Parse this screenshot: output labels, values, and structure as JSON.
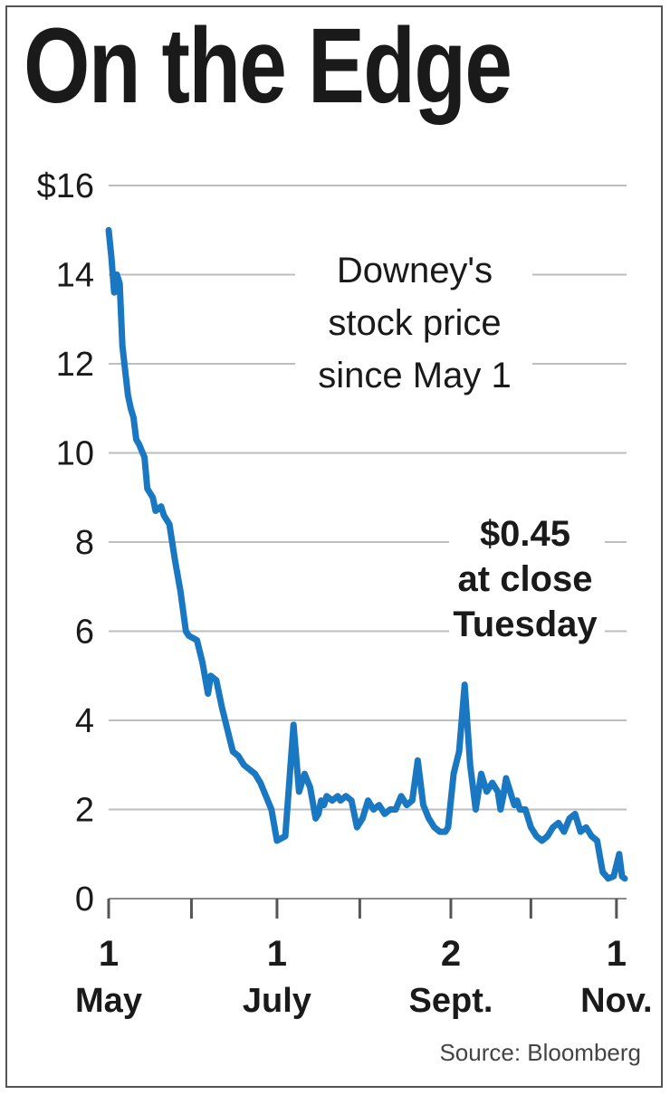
{
  "chart_data": {
    "type": "line",
    "title": "On the Edge",
    "annotation": [
      "Downey's",
      "stock price",
      "since May 1"
    ],
    "callout": [
      "$0.45",
      "at close",
      "Tuesday"
    ],
    "source": "Source: Bloomberg",
    "ylim": [
      0,
      16
    ],
    "y_ticks": [
      {
        "value": 16,
        "label": "$16"
      },
      {
        "value": 14,
        "label": "14"
      },
      {
        "value": 12,
        "label": "12"
      },
      {
        "value": 10,
        "label": "10"
      },
      {
        "value": 8,
        "label": "8"
      },
      {
        "value": 6,
        "label": "6"
      },
      {
        "value": 4,
        "label": "4"
      },
      {
        "value": 2,
        "label": "2"
      },
      {
        "value": 0,
        "label": "0"
      }
    ],
    "xlim": [
      "2008-05-01",
      "2008-11-04"
    ],
    "x_labels": [
      {
        "date": "2008-05-01",
        "day": "1",
        "month": "May"
      },
      {
        "date": "2008-07-01",
        "day": "1",
        "month": "July"
      },
      {
        "date": "2008-09-02",
        "day": "2",
        "month": "Sept."
      },
      {
        "date": "2008-11-01",
        "day": "1",
        "month": "Nov."
      }
    ],
    "x_ticks": [
      "2008-05-01",
      "2008-05-31",
      "2008-07-01",
      "2008-07-31",
      "2008-09-02",
      "2008-10-01",
      "2008-11-01"
    ],
    "grid": true,
    "line_color": "#1a78c2",
    "series": [
      {
        "x": [
          "2008-05-01",
          "2008-05-02",
          "2008-05-03",
          "2008-05-04",
          "2008-05-05",
          "2008-05-06",
          "2008-05-08",
          "2008-05-09",
          "2008-05-10",
          "2008-05-11",
          "2008-05-12",
          "2008-05-14",
          "2008-05-15",
          "2008-05-17",
          "2008-05-18",
          "2008-05-20",
          "2008-05-21",
          "2008-05-23",
          "2008-05-25",
          "2008-05-27",
          "2008-05-29",
          "2008-05-30",
          "2008-06-02",
          "2008-06-04",
          "2008-06-06",
          "2008-06-07",
          "2008-06-09",
          "2008-06-11",
          "2008-06-13",
          "2008-06-15",
          "2008-06-17",
          "2008-06-19",
          "2008-06-21",
          "2008-06-23",
          "2008-06-25",
          "2008-06-27",
          "2008-06-29",
          "2008-07-01",
          "2008-07-04",
          "2008-07-07",
          "2008-07-09",
          "2008-07-11",
          "2008-07-13",
          "2008-07-15",
          "2008-07-16",
          "2008-07-17",
          "2008-07-18",
          "2008-07-19",
          "2008-07-21",
          "2008-07-23",
          "2008-07-24",
          "2008-07-26",
          "2008-07-28",
          "2008-07-30",
          "2008-08-01",
          "2008-08-03",
          "2008-08-05",
          "2008-08-07",
          "2008-08-09",
          "2008-08-11",
          "2008-08-13",
          "2008-08-15",
          "2008-08-17",
          "2008-08-19",
          "2008-08-21",
          "2008-08-23",
          "2008-08-25",
          "2008-08-27",
          "2008-08-29",
          "2008-08-31",
          "2008-09-01",
          "2008-09-03",
          "2008-09-05",
          "2008-09-07",
          "2008-09-09",
          "2008-09-11",
          "2008-09-13",
          "2008-09-15",
          "2008-09-17",
          "2008-09-19",
          "2008-09-20",
          "2008-09-21",
          "2008-09-22",
          "2008-09-23",
          "2008-09-24",
          "2008-09-25",
          "2008-09-26",
          "2008-09-27",
          "2008-09-29",
          "2008-10-01",
          "2008-10-03",
          "2008-10-05",
          "2008-10-07",
          "2008-10-09",
          "2008-10-11",
          "2008-10-13",
          "2008-10-15",
          "2008-10-17",
          "2008-10-19",
          "2008-10-21",
          "2008-10-23",
          "2008-10-25",
          "2008-10-27",
          "2008-10-29",
          "2008-10-31",
          "2008-11-02",
          "2008-11-03",
          "2008-11-04"
        ],
        "y": [
          15.0,
          14.4,
          13.6,
          14.0,
          13.8,
          12.4,
          11.3,
          11.0,
          10.8,
          10.3,
          10.2,
          9.9,
          9.2,
          9.0,
          8.7,
          8.8,
          8.6,
          8.4,
          7.6,
          6.9,
          6.0,
          5.9,
          5.8,
          5.3,
          4.6,
          5.0,
          4.9,
          4.3,
          3.8,
          3.3,
          3.2,
          3.0,
          2.9,
          2.8,
          2.6,
          2.3,
          2.0,
          1.3,
          1.4,
          3.9,
          2.4,
          2.8,
          2.5,
          1.8,
          1.9,
          2.2,
          2.1,
          2.3,
          2.2,
          2.3,
          2.2,
          2.3,
          2.2,
          1.6,
          1.8,
          2.2,
          2.0,
          2.1,
          1.9,
          2.0,
          2.0,
          2.3,
          2.1,
          2.2,
          3.1,
          2.1,
          1.8,
          1.6,
          1.5,
          1.5,
          1.6,
          2.8,
          3.3,
          4.8,
          3.0,
          2.0,
          2.8,
          2.4,
          2.6,
          2.4,
          2.0,
          2.3,
          2.7,
          2.5,
          2.3,
          2.1,
          2.2,
          2.0,
          2.0,
          1.6,
          1.4,
          1.3,
          1.4,
          1.6,
          1.7,
          1.5,
          1.8,
          1.9,
          1.5,
          1.6,
          1.4,
          1.3,
          0.6,
          0.45,
          0.5,
          1.0,
          0.5,
          0.45
        ]
      }
    ]
  }
}
